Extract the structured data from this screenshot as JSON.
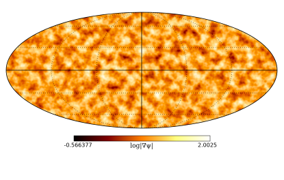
{
  "colorbar": {
    "min": -0.566377,
    "max": 2.0025,
    "label": "log|∇ψ|"
  }
}
